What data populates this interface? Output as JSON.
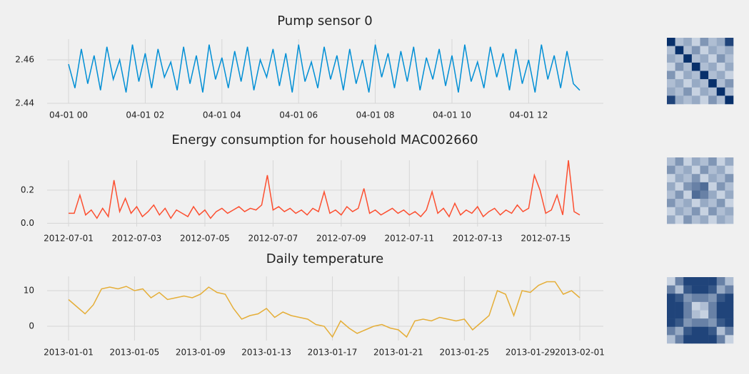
{
  "chart_data": [
    {
      "type": "line",
      "title": "Pump sensor 0",
      "color": "#008fd5",
      "grid": true,
      "categories": [
        "04-01 00",
        null,
        null,
        null,
        null,
        null,
        null,
        null,
        null,
        null,
        null,
        null,
        "04-01 02",
        null,
        null,
        null,
        null,
        null,
        null,
        null,
        null,
        null,
        null,
        null,
        "04-01 04",
        null,
        null,
        null,
        null,
        null,
        null,
        null,
        null,
        null,
        null,
        null,
        "04-01 06",
        null,
        null,
        null,
        null,
        null,
        null,
        null,
        null,
        null,
        null,
        null,
        "04-01 08",
        null,
        null,
        null,
        null,
        null,
        null,
        null,
        null,
        null,
        null,
        null,
        "04-01 10",
        null,
        null,
        null,
        null,
        null,
        null,
        null,
        null,
        null,
        null,
        null,
        "04-01 12",
        null,
        null,
        null,
        null,
        null,
        null,
        null,
        null
      ],
      "values": [
        2.458,
        2.447,
        2.465,
        2.449,
        2.462,
        2.446,
        2.466,
        2.451,
        2.46,
        2.445,
        2.467,
        2.45,
        2.463,
        2.447,
        2.465,
        2.452,
        2.459,
        2.446,
        2.466,
        2.449,
        2.462,
        2.445,
        2.467,
        2.451,
        2.461,
        2.447,
        2.464,
        2.45,
        2.466,
        2.446,
        2.46,
        2.452,
        2.465,
        2.448,
        2.463,
        2.445,
        2.467,
        2.45,
        2.459,
        2.447,
        2.466,
        2.451,
        2.462,
        2.446,
        2.465,
        2.449,
        2.46,
        2.445,
        2.467,
        2.452,
        2.463,
        2.447,
        2.464,
        2.45,
        2.466,
        2.446,
        2.461,
        2.451,
        2.465,
        2.448,
        2.462,
        2.445,
        2.467,
        2.45,
        2.459,
        2.447,
        2.466,
        2.452,
        2.463,
        2.446,
        2.465,
        2.449,
        2.46,
        2.445,
        2.467,
        2.451,
        2.462,
        2.447,
        2.464,
        2.449,
        2.446
      ],
      "ylim": [
        2.44,
        2.4695
      ],
      "yticks": [
        2.44,
        2.46
      ]
    },
    {
      "type": "line",
      "title": "Energy consumption for household MAC002660",
      "color": "#fc4f30",
      "grid": true,
      "categories": [
        "2012-07-01",
        null,
        null,
        null,
        null,
        null,
        null,
        null,
        null,
        null,
        null,
        null,
        "2012-07-03",
        null,
        null,
        null,
        null,
        null,
        null,
        null,
        null,
        null,
        null,
        null,
        "2012-07-05",
        null,
        null,
        null,
        null,
        null,
        null,
        null,
        null,
        null,
        null,
        null,
        "2012-07-07",
        null,
        null,
        null,
        null,
        null,
        null,
        null,
        null,
        null,
        null,
        null,
        "2012-07-09",
        null,
        null,
        null,
        null,
        null,
        null,
        null,
        null,
        null,
        null,
        null,
        "2012-07-11",
        null,
        null,
        null,
        null,
        null,
        null,
        null,
        null,
        null,
        null,
        null,
        "2012-07-13",
        null,
        null,
        null,
        null,
        null,
        null,
        null,
        null,
        null,
        null,
        null,
        "2012-07-15",
        null,
        null,
        null,
        null,
        null,
        null
      ],
      "values": [
        0.06,
        0.06,
        0.17,
        0.05,
        0.08,
        0.03,
        0.09,
        0.04,
        0.26,
        0.07,
        0.15,
        0.06,
        0.1,
        0.04,
        0.07,
        0.11,
        0.05,
        0.09,
        0.03,
        0.08,
        0.06,
        0.04,
        0.1,
        0.05,
        0.08,
        0.03,
        0.07,
        0.09,
        0.06,
        0.08,
        0.1,
        0.07,
        0.09,
        0.08,
        0.11,
        0.29,
        0.08,
        0.1,
        0.07,
        0.09,
        0.06,
        0.08,
        0.05,
        0.09,
        0.07,
        0.19,
        0.06,
        0.08,
        0.05,
        0.1,
        0.07,
        0.09,
        0.21,
        0.06,
        0.08,
        0.05,
        0.07,
        0.09,
        0.06,
        0.08,
        0.05,
        0.07,
        0.04,
        0.08,
        0.19,
        0.06,
        0.09,
        0.04,
        0.12,
        0.05,
        0.08,
        0.06,
        0.1,
        0.04,
        0.07,
        0.09,
        0.05,
        0.08,
        0.06,
        0.11,
        0.07,
        0.09,
        0.29,
        0.2,
        0.06,
        0.08,
        0.17,
        0.05,
        0.38,
        0.07,
        0.05
      ],
      "ylim": [
        -0.02,
        0.38
      ],
      "yticks": [
        {
          "value": 0,
          "label": "0.0"
        },
        0.2
      ]
    },
    {
      "type": "line",
      "title": "Daily temperature",
      "color": "#e5ae38",
      "grid": true,
      "categories": [
        "2013-01-01",
        null,
        null,
        null,
        null,
        null,
        null,
        null,
        "2013-01-05",
        null,
        null,
        null,
        null,
        null,
        null,
        null,
        "2013-01-09",
        null,
        null,
        null,
        null,
        null,
        null,
        null,
        "2013-01-13",
        null,
        null,
        null,
        null,
        null,
        null,
        null,
        "2013-01-17",
        null,
        null,
        null,
        null,
        null,
        null,
        null,
        "2013-01-21",
        null,
        null,
        null,
        null,
        null,
        null,
        null,
        "2013-01-25",
        null,
        null,
        null,
        null,
        null,
        null,
        null,
        "2013-01-29",
        null,
        null,
        null,
        null,
        null,
        "2013-02-01"
      ],
      "values": [
        7.5,
        5.5,
        3.5,
        6.0,
        10.5,
        11.0,
        10.5,
        11.2,
        10.0,
        10.5,
        8.0,
        9.5,
        7.5,
        8.0,
        8.5,
        8.0,
        9.0,
        11.0,
        9.5,
        9.0,
        5.0,
        2.0,
        3.0,
        3.5,
        5.0,
        2.5,
        4.0,
        3.0,
        2.5,
        2.0,
        0.5,
        0.0,
        -3.0,
        1.5,
        -0.5,
        -2.0,
        -1.0,
        0.0,
        0.5,
        -0.5,
        -1.0,
        -3.0,
        1.5,
        2.0,
        1.5,
        2.5,
        2.0,
        1.5,
        2.0,
        -1.0,
        1.0,
        3.0,
        10.0,
        9.0,
        3.0,
        10.0,
        9.5,
        11.5,
        12.5,
        12.5,
        9.0,
        10.0,
        8.0
      ],
      "ylim": [
        -4,
        14
      ],
      "yticks": [
        0,
        10
      ]
    },
    {
      "type": "heatmap",
      "z": [
        [
          1,
          0.3,
          0.4,
          0.2,
          0.5,
          0.3,
          0.4,
          0.9
        ],
        [
          0.3,
          1,
          0.3,
          0.5,
          0.2,
          0.4,
          0.3,
          0.4
        ],
        [
          0.4,
          0.3,
          1,
          0.3,
          0.4,
          0.2,
          0.5,
          0.3
        ],
        [
          0.2,
          0.5,
          0.3,
          1,
          0.3,
          0.4,
          0.2,
          0.4
        ],
        [
          0.5,
          0.2,
          0.4,
          0.3,
          1,
          0.3,
          0.4,
          0.2
        ],
        [
          0.3,
          0.4,
          0.2,
          0.4,
          0.3,
          1,
          0.3,
          0.5
        ],
        [
          0.4,
          0.3,
          0.5,
          0.2,
          0.4,
          0.3,
          1,
          0.3
        ],
        [
          0.9,
          0.4,
          0.3,
          0.4,
          0.2,
          0.5,
          0.3,
          1
        ]
      ]
    },
    {
      "type": "heatmap",
      "z": [
        [
          0.3,
          0.5,
          0.2,
          0.4,
          0.3,
          0.5,
          0.2,
          0.4
        ],
        [
          0.5,
          0.3,
          0.4,
          0.2,
          0.5,
          0.3,
          0.4,
          0.2
        ],
        [
          0.2,
          0.4,
          0.3,
          0.5,
          0.2,
          0.4,
          0.3,
          0.5
        ],
        [
          0.4,
          0.2,
          0.5,
          0.6,
          0.7,
          0.2,
          0.5,
          0.3
        ],
        [
          0.3,
          0.5,
          0.2,
          0.7,
          0.6,
          0.4,
          0.2,
          0.4
        ],
        [
          0.5,
          0.3,
          0.4,
          0.2,
          0.4,
          0.3,
          0.5,
          0.2
        ],
        [
          0.2,
          0.4,
          0.3,
          0.5,
          0.2,
          0.5,
          0.3,
          0.4
        ],
        [
          0.4,
          0.2,
          0.5,
          0.3,
          0.4,
          0.2,
          0.4,
          0.3
        ]
      ]
    },
    {
      "type": "heatmap",
      "z": [
        [
          0.2,
          0.6,
          0.9,
          0.9,
          0.9,
          0.9,
          0.6,
          0.3
        ],
        [
          0.6,
          0.3,
          0.8,
          0.9,
          0.9,
          0.8,
          0.4,
          0.6
        ],
        [
          0.9,
          0.8,
          0.5,
          0.6,
          0.6,
          0.5,
          0.8,
          0.9
        ],
        [
          0.9,
          0.9,
          0.6,
          0.2,
          0.3,
          0.6,
          0.9,
          0.9
        ],
        [
          0.9,
          0.9,
          0.6,
          0.3,
          0.2,
          0.6,
          0.9,
          0.9
        ],
        [
          0.9,
          0.8,
          0.5,
          0.6,
          0.6,
          0.5,
          0.8,
          0.9
        ],
        [
          0.6,
          0.4,
          0.8,
          0.9,
          0.9,
          0.8,
          0.3,
          0.6
        ],
        [
          0.3,
          0.6,
          0.9,
          0.9,
          0.9,
          0.9,
          0.6,
          0.2
        ]
      ]
    }
  ]
}
